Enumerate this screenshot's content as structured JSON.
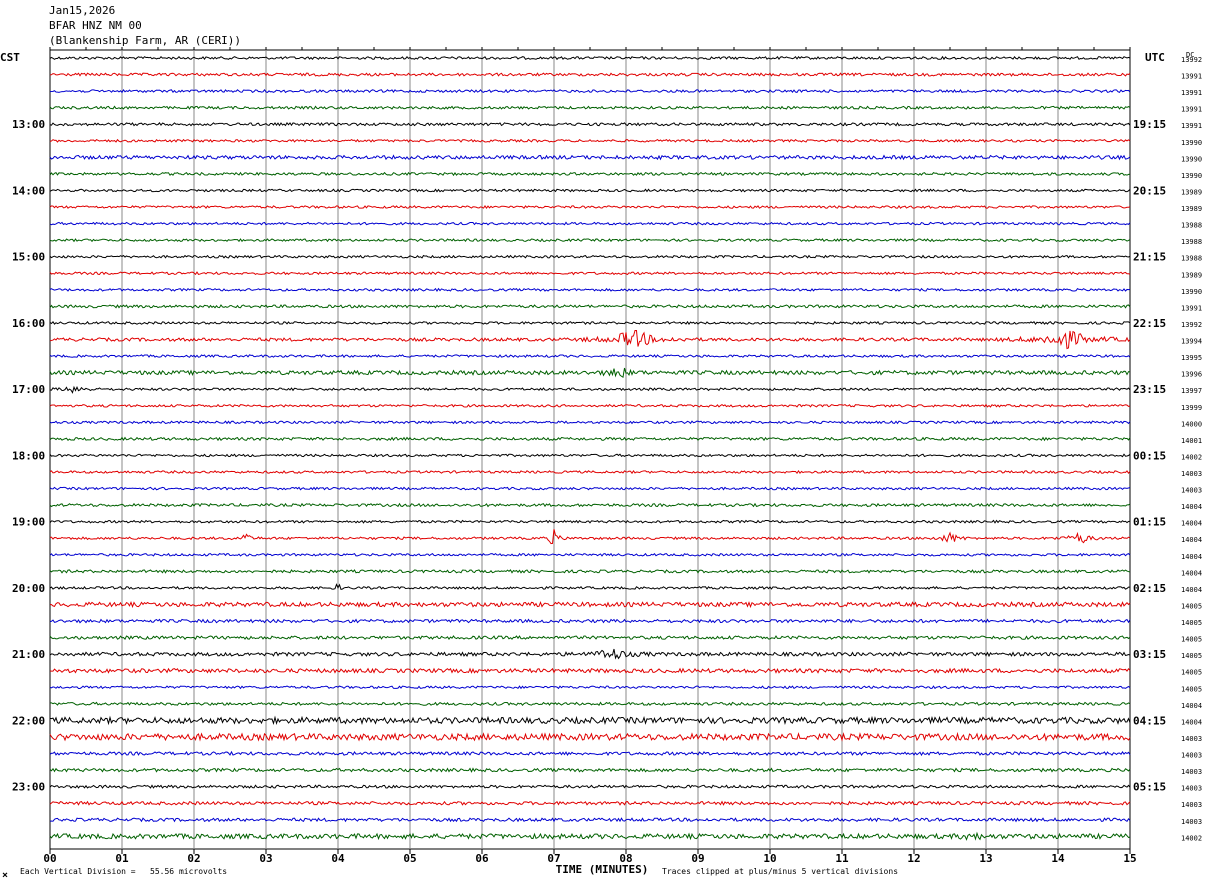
{
  "header": {
    "date": "Jan15,2026",
    "station": "BFAR HNZ NM 00",
    "location": "(Blankenship Farm, AR (CERI))"
  },
  "left_tz": "CST",
  "right_tz": "UTC",
  "dc_label": "DC",
  "footer": {
    "division_note": "Each Vertical Division =   55.56 microvolts",
    "xlabel": "TIME (MINUTES)",
    "clip_note": "Traces clipped at plus/minus 5 vertical divisions"
  },
  "colors": {
    "trace_cycle": [
      "#000000",
      "#e00000",
      "#0000d0",
      "#006000"
    ],
    "grid": "#888888"
  },
  "chart_data": {
    "type": "line",
    "xlabel": "TIME (MINUTES)",
    "xlim": [
      0,
      15
    ],
    "x_ticks": [
      "00",
      "01",
      "02",
      "03",
      "04",
      "05",
      "06",
      "07",
      "08",
      "09",
      "10",
      "11",
      "12",
      "13",
      "14",
      "15"
    ],
    "left_hour_labels": [
      "13:00",
      "14:00",
      "15:00",
      "16:00",
      "17:00",
      "18:00",
      "19:00",
      "20:00",
      "21:00",
      "22:00",
      "23:00"
    ],
    "right_hour_labels": [
      "19:15",
      "20:15",
      "21:15",
      "22:15",
      "23:15",
      "00:15",
      "01:15",
      "02:15",
      "03:15",
      "04:15",
      "05:15"
    ],
    "dc_offsets": [
      13992,
      13991,
      13991,
      13991,
      13991,
      13990,
      13990,
      13990,
      13989,
      13989,
      13988,
      13988,
      13988,
      13989,
      13990,
      13991,
      13992,
      13994,
      13995,
      13996,
      13997,
      13999,
      14000,
      14001,
      14002,
      14003,
      14003,
      14004,
      14004,
      14004,
      14004,
      14004,
      14004,
      14005,
      14005,
      14005,
      14005,
      14005,
      14005,
      14004,
      14004,
      14003,
      14003,
      14003,
      14003,
      14003,
      14003,
      14002
    ],
    "trace_count": 48,
    "trace_minutes": 15,
    "events": [
      {
        "trace": 17,
        "minute": 8.1,
        "amp": 9,
        "width": 0.35
      },
      {
        "trace": 17,
        "minute": 14.1,
        "amp": 9,
        "width": 0.4
      },
      {
        "trace": 19,
        "minute": 7.9,
        "amp": 6,
        "width": 0.15
      },
      {
        "trace": 20,
        "minute": 0.35,
        "amp": 4,
        "width": 0.15
      },
      {
        "trace": 29,
        "minute": 7.0,
        "amp": 9,
        "width": 0.08
      },
      {
        "trace": 29,
        "minute": 2.7,
        "amp": 5,
        "width": 0.1
      },
      {
        "trace": 29,
        "minute": 12.5,
        "amp": 5,
        "width": 0.15
      },
      {
        "trace": 29,
        "minute": 14.3,
        "amp": 5,
        "width": 0.2
      },
      {
        "trace": 32,
        "minute": 4.0,
        "amp": 4,
        "width": 0.05
      },
      {
        "trace": 36,
        "minute": 7.8,
        "amp": 5,
        "width": 0.3
      },
      {
        "trace": 47,
        "minute": 12.8,
        "amp": 5,
        "width": 0.1
      }
    ],
    "noise_levels": [
      1.3,
      1.4,
      1.3,
      1.3,
      1.4,
      1.2,
      1.8,
      1.3,
      1.2,
      1.2,
      1.2,
      1.2,
      1.2,
      1.2,
      1.2,
      1.4,
      1.2,
      1.6,
      1.2,
      2.0,
      1.2,
      1.2,
      1.2,
      1.4,
      1.2,
      1.2,
      1.2,
      1.4,
      1.2,
      1.2,
      1.2,
      1.4,
      1.2,
      2.2,
      1.6,
      1.6,
      1.8,
      2.0,
      1.2,
      1.4,
      3.0,
      3.2,
      1.6,
      1.6,
      1.4,
      1.6,
      1.6,
      2.4
    ]
  }
}
